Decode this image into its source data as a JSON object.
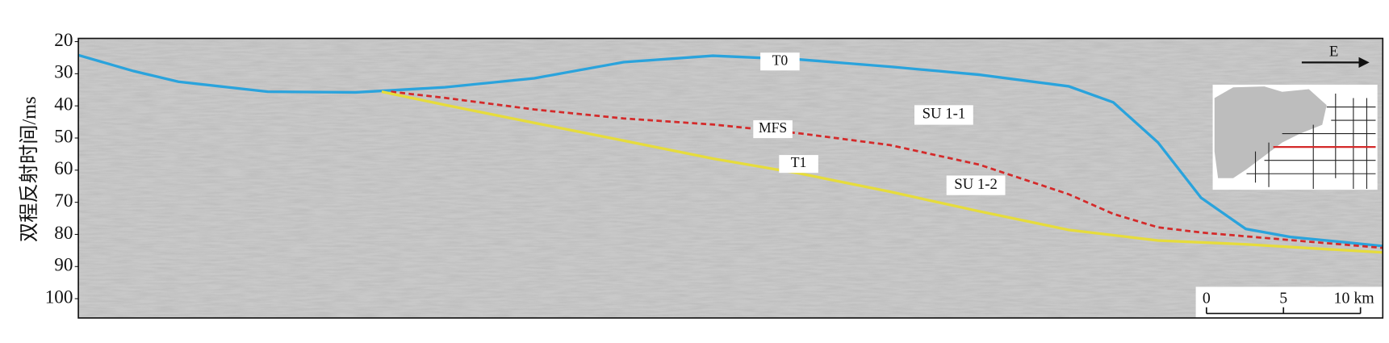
{
  "chart_data": {
    "type": "line",
    "y_label": "双程反射时间/ms",
    "ylim": [
      19,
      106
    ],
    "invert_y": true,
    "yticks": [
      20,
      30,
      40,
      50,
      60,
      70,
      80,
      90,
      100
    ],
    "xlim": [
      0,
      84.7
    ],
    "series": [
      {
        "name": "T0",
        "color": "#2aa3dc",
        "dash": false,
        "x": [
          0,
          3.6,
          6.5,
          12.3,
          18.0,
          23.8,
          29.6,
          35.4,
          41.2,
          46.9,
          52.7,
          58.5,
          64.3,
          67.2,
          70.1,
          72.9,
          75.8,
          78.7,
          84.7
        ],
        "values": [
          24.2,
          29.2,
          32.5,
          35.6,
          35.8,
          34.2,
          31.4,
          26.4,
          24.4,
          25.6,
          27.8,
          30.3,
          33.9,
          38.9,
          51.4,
          68.6,
          78.3,
          80.8,
          83.6
        ]
      },
      {
        "name": "MFS",
        "color": "#d42a2a",
        "dash": true,
        "x": [
          20.3,
          23.8,
          29.6,
          35.4,
          41.2,
          46.9,
          52.7,
          58.5,
          64.3,
          67.2,
          70.1,
          72.9,
          75.8,
          84.7
        ],
        "values": [
          35.6,
          37.5,
          41.1,
          43.9,
          45.8,
          48.6,
          52.2,
          58.3,
          67.5,
          73.6,
          77.8,
          79.4,
          80.6,
          84.2
        ]
      },
      {
        "name": "T1",
        "color": "#e6dc3c",
        "dash": false,
        "x": [
          19.7,
          23.8,
          29.6,
          35.4,
          41.2,
          46.9,
          52.7,
          58.5,
          64.3,
          70.1,
          75.8,
          84.7
        ],
        "values": [
          35.6,
          39.7,
          45.3,
          50.8,
          56.4,
          61.1,
          66.7,
          72.8,
          78.6,
          81.9,
          83.1,
          85.6
        ]
      }
    ],
    "annotations": [
      "SU 1-1",
      "SU 1-2",
      "E"
    ],
    "scale_bar": {
      "ticks": [
        0,
        5,
        {
          "value": 10,
          "label": "10 km"
        }
      ]
    }
  }
}
